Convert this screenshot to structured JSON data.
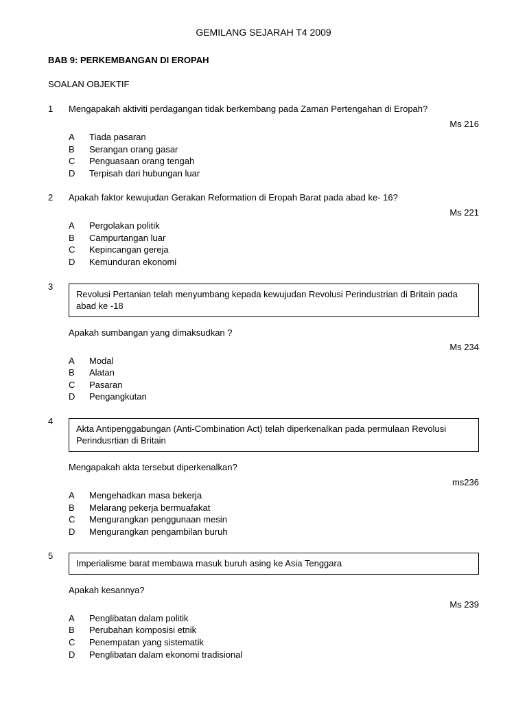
{
  "header": "GEMILANG SEJARAH T4 2009",
  "chapter": "BAB 9: PERKEMBANGAN DI EROPAH",
  "section_title": "SOALAN OBJEKTIF",
  "questions": [
    {
      "num": "1",
      "text": "Mengapakah aktiviti perdagangan tidak berkembang pada Zaman Pertengahan  di Eropah?",
      "ref": "Ms 216",
      "options": {
        "A": "Tiada pasaran",
        "B": "Serangan orang gasar",
        "C": "Penguasaan orang tengah",
        "D": "Terpisah dari hubungan luar"
      }
    },
    {
      "num": "2",
      "text": "Apakah faktor kewujudan Gerakan Reformation di Eropah Barat pada abad ke- 16?",
      "ref": "Ms 221",
      "options": {
        "A": "Pergolakan politik",
        "B": "Campurtangan luar",
        "C": "Kepincangan gereja",
        "D": "Kemunduran ekonomi"
      }
    },
    {
      "num": "3",
      "box": "Revolusi Pertanian telah menyumbang kepada kewujudan Revolusi Perindustrian di Britain pada abad ke -18",
      "subq": "Apakah sumbangan yang dimaksudkan ?",
      "ref": "Ms 234",
      "options": {
        "A": "Modal",
        "B": "Alatan",
        "C": "Pasaran",
        "D": "Pengangkutan"
      }
    },
    {
      "num": "4",
      "box": "Akta Antipenggabungan (Anti-Combination Act) telah diperkenalkan pada permulaan Revolusi Perindusrtian  di Britain",
      "subq": "Mengapakah akta tersebut diperkenalkan?",
      "ref": "ms236",
      "options": {
        "A": "Mengehadkan masa bekerja",
        "B": "Melarang pekerja bermuafakat",
        "C": "Mengurangkan penggunaan mesin",
        "D": "Mengurangkan pengambilan buruh"
      }
    },
    {
      "num": "5",
      "box": "Imperialisme barat membawa masuk buruh asing ke Asia Tenggara",
      "subq": "Apakah kesannya?",
      "ref": "Ms 239",
      "options": {
        "A": "Penglibatan dalam politik",
        "B": "Perubahan komposisi etnik",
        "C": "Penempatan yang sistematik",
        "D": "Penglibatan dalam ekonomi tradisional"
      }
    }
  ]
}
